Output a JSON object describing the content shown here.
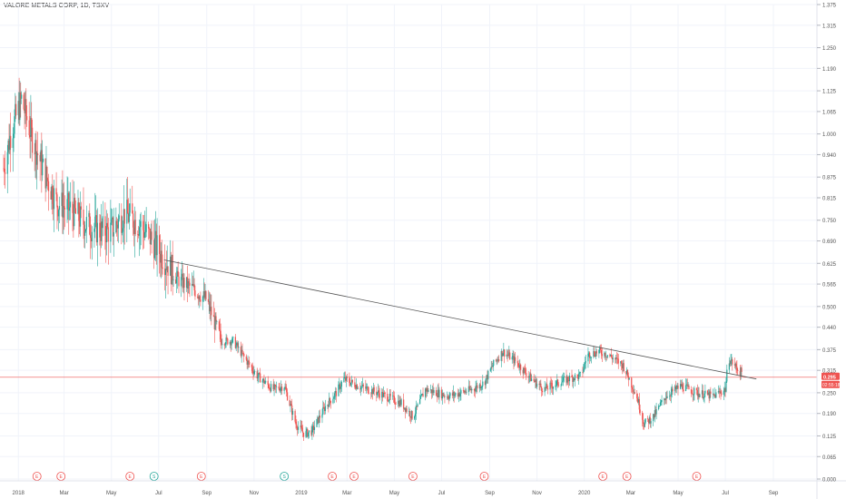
{
  "header": {
    "symbol_title": "VALORE METALS CORP, 1D, TSXV"
  },
  "colors": {
    "up": "#26a69a",
    "down": "#ef5350",
    "trendline": "#555555",
    "price_line": "#ef5350",
    "grid": "#f0f3fa",
    "axis_text": "#555555",
    "background": "#ffffff"
  },
  "chart_data": {
    "type": "candlestick",
    "title": "VALORE METALS CORP, 1D, TSXV",
    "ylim": [
      0,
      1.375
    ],
    "y_ticks": [
      "0.000",
      "0.065",
      "0.125",
      "0.190",
      "0.250",
      "0.315",
      "0.375",
      "0.440",
      "0.500",
      "0.565",
      "0.625",
      "0.690",
      "0.750",
      "0.815",
      "0.875",
      "0.940",
      "1.000",
      "1.065",
      "1.125",
      "1.190",
      "1.250",
      "1.315",
      "1.375"
    ],
    "y_tick_values": [
      0,
      0.065,
      0.125,
      0.19,
      0.25,
      0.315,
      0.375,
      0.44,
      0.5,
      0.565,
      0.625,
      0.69,
      0.75,
      0.815,
      0.875,
      0.94,
      1.0,
      1.065,
      1.125,
      1.19,
      1.25,
      1.315,
      1.375
    ],
    "x_range": [
      "2017-12-13",
      "2020-09-15"
    ],
    "x_ticks": [
      {
        "label": "2018",
        "date": "2018-01-01"
      },
      {
        "label": "Mar",
        "date": "2018-03-01"
      },
      {
        "label": "May",
        "date": "2018-05-01"
      },
      {
        "label": "Jul",
        "date": "2018-07-01"
      },
      {
        "label": "Sep",
        "date": "2018-09-01"
      },
      {
        "label": "Nov",
        "date": "2018-11-01"
      },
      {
        "label": "2019",
        "date": "2019-01-01"
      },
      {
        "label": "Mar",
        "date": "2019-03-01"
      },
      {
        "label": "May",
        "date": "2019-05-01"
      },
      {
        "label": "Jul",
        "date": "2019-07-01"
      },
      {
        "label": "Sep",
        "date": "2019-09-01"
      },
      {
        "label": "Nov",
        "date": "2019-11-01"
      },
      {
        "label": "2020",
        "date": "2020-01-01"
      },
      {
        "label": "Mar",
        "date": "2020-03-01"
      },
      {
        "label": "May",
        "date": "2020-05-01"
      },
      {
        "label": "Jul",
        "date": "2020-07-01"
      },
      {
        "label": "Sep",
        "date": "2020-09-01"
      }
    ],
    "price_points": [
      [
        "2017-12-13",
        0.9
      ],
      [
        "2017-12-22",
        1.0
      ],
      [
        "2018-01-05",
        1.1
      ],
      [
        "2018-01-20",
        0.98
      ],
      [
        "2018-02-05",
        0.88
      ],
      [
        "2018-02-20",
        0.8
      ],
      [
        "2018-03-10",
        0.78
      ],
      [
        "2018-03-28",
        0.74
      ],
      [
        "2018-04-15",
        0.72
      ],
      [
        "2018-05-01",
        0.72
      ],
      [
        "2018-05-18",
        0.77
      ],
      [
        "2018-06-05",
        0.74
      ],
      [
        "2018-06-20",
        0.7
      ],
      [
        "2018-07-05",
        0.65
      ],
      [
        "2018-07-25",
        0.58
      ],
      [
        "2018-08-15",
        0.55
      ],
      [
        "2018-09-01",
        0.52
      ],
      [
        "2018-09-10",
        0.46
      ],
      [
        "2018-09-20",
        0.4
      ],
      [
        "2018-10-05",
        0.4
      ],
      [
        "2018-10-20",
        0.35
      ],
      [
        "2018-11-05",
        0.3
      ],
      [
        "2018-11-25",
        0.26
      ],
      [
        "2018-12-10",
        0.27
      ],
      [
        "2018-12-25",
        0.16
      ],
      [
        "2019-01-05",
        0.13
      ],
      [
        "2019-01-15",
        0.14
      ],
      [
        "2019-02-01",
        0.21
      ],
      [
        "2019-02-15",
        0.25
      ],
      [
        "2019-02-25",
        0.29
      ],
      [
        "2019-03-15",
        0.27
      ],
      [
        "2019-04-10",
        0.25
      ],
      [
        "2019-05-10",
        0.22
      ],
      [
        "2019-05-25",
        0.18
      ],
      [
        "2019-06-10",
        0.26
      ],
      [
        "2019-07-10",
        0.24
      ],
      [
        "2019-08-10",
        0.26
      ],
      [
        "2019-08-25",
        0.28
      ],
      [
        "2019-09-05",
        0.33
      ],
      [
        "2019-09-18",
        0.37
      ],
      [
        "2019-10-05",
        0.34
      ],
      [
        "2019-10-25",
        0.29
      ],
      [
        "2019-11-10",
        0.26
      ],
      [
        "2019-12-10",
        0.29
      ],
      [
        "2019-12-28",
        0.3
      ],
      [
        "2020-01-05",
        0.36
      ],
      [
        "2020-01-20",
        0.37
      ],
      [
        "2020-02-01",
        0.36
      ],
      [
        "2020-02-20",
        0.33
      ],
      [
        "2020-03-01",
        0.28
      ],
      [
        "2020-03-10",
        0.23
      ],
      [
        "2020-03-18",
        0.16
      ],
      [
        "2020-03-30",
        0.18
      ],
      [
        "2020-04-15",
        0.24
      ],
      [
        "2020-05-05",
        0.27
      ],
      [
        "2020-05-25",
        0.25
      ],
      [
        "2020-06-15",
        0.24
      ],
      [
        "2020-07-01",
        0.26
      ],
      [
        "2020-07-05",
        0.35
      ],
      [
        "2020-07-20",
        0.31
      ]
    ],
    "trendline": {
      "start": [
        "2018-07-08",
        0.635
      ],
      "end": [
        "2020-08-10",
        0.29
      ]
    },
    "last_price": {
      "value": 0.295,
      "label": "0.295",
      "countdown": "02:55:18"
    },
    "event_markers": [
      {
        "date": "2018-01-25",
        "letter": "E",
        "kind": "earnings"
      },
      {
        "date": "2018-02-25",
        "letter": "E",
        "kind": "earnings"
      },
      {
        "date": "2018-05-25",
        "letter": "E",
        "kind": "earnings"
      },
      {
        "date": "2018-06-25",
        "letter": "S",
        "kind": "split"
      },
      {
        "date": "2018-08-25",
        "letter": "E",
        "kind": "earnings"
      },
      {
        "date": "2018-12-10",
        "letter": "S",
        "kind": "split"
      },
      {
        "date": "2019-02-10",
        "letter": "E",
        "kind": "earnings"
      },
      {
        "date": "2019-03-10",
        "letter": "E",
        "kind": "earnings"
      },
      {
        "date": "2019-05-25",
        "letter": "E",
        "kind": "earnings"
      },
      {
        "date": "2019-08-25",
        "letter": "E",
        "kind": "earnings"
      },
      {
        "date": "2020-01-25",
        "letter": "E",
        "kind": "earnings"
      },
      {
        "date": "2020-02-25",
        "letter": "E",
        "kind": "earnings"
      },
      {
        "date": "2020-05-25",
        "letter": "E",
        "kind": "earnings"
      }
    ]
  }
}
